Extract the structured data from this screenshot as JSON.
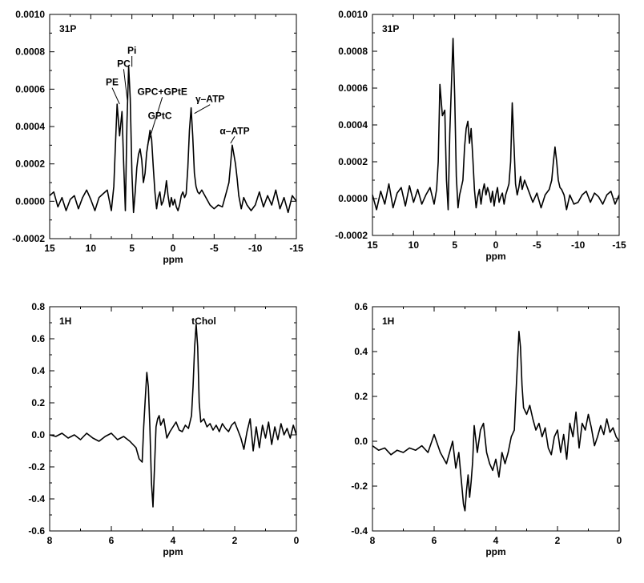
{
  "chart_data": [
    {
      "id": "p31_left",
      "type": "line",
      "panel_label": "31P",
      "xlabel": "ppm",
      "xlim": [
        15,
        -15
      ],
      "ylim": [
        -0.0002,
        0.001
      ],
      "x_ticks": [
        15,
        10,
        5,
        0,
        -5,
        -10,
        -15
      ],
      "x_tick_labels": [
        "15",
        "10",
        "5",
        "0",
        "-5",
        "-10",
        "-15"
      ],
      "y_ticks": [
        -0.0002,
        0,
        0.0002,
        0.0004,
        0.0006,
        0.0008,
        0.001
      ],
      "y_tick_labels": [
        "-0.0002",
        "0.0000",
        "0.0002",
        "0.0004",
        "0.0006",
        "0.0008",
        "0.0010"
      ],
      "grid": false,
      "annotations": [
        {
          "text": "PE",
          "x": 7.4,
          "y": 0.00062,
          "px": 6.5,
          "py": 0.00052
        },
        {
          "text": "PC",
          "x": 6.0,
          "y": 0.00072,
          "px": 5.5,
          "py": 0.00052
        },
        {
          "text": "Pi",
          "x": 5.0,
          "y": 0.00079,
          "px": 5.0,
          "py": 0.00072
        },
        {
          "text": "GPC+GPtE",
          "x": 1.3,
          "y": 0.00057,
          "px": 3.1,
          "py": 0.0003
        },
        {
          "text": "GPtC",
          "x": 1.6,
          "y": 0.00044
        },
        {
          "text": "γ–ATP",
          "x": -4.5,
          "y": 0.00053,
          "px": -2.6,
          "py": 0.00047
        },
        {
          "text": "α–ATP",
          "x": -7.5,
          "y": 0.00036,
          "px": -7.0,
          "py": 0.00031
        }
      ],
      "series": [
        {
          "x": [
            15,
            14.5,
            14,
            13.5,
            13,
            12.5,
            12,
            11.5,
            11,
            10.5,
            10,
            9.5,
            9,
            8.5,
            8,
            7.5,
            7.2,
            7,
            6.8,
            6.5,
            6.2,
            6,
            5.8,
            5.6,
            5.4,
            5.2,
            5,
            4.8,
            4.6,
            4.4,
            4.2,
            4,
            3.8,
            3.6,
            3.4,
            3.2,
            3,
            2.8,
            2.6,
            2.4,
            2.2,
            2,
            1.8,
            1.6,
            1.4,
            1.2,
            1,
            0.8,
            0.6,
            0.4,
            0.2,
            0,
            -0.2,
            -0.4,
            -0.6,
            -0.8,
            -1,
            -1.2,
            -1.4,
            -1.6,
            -1.8,
            -2,
            -2.2,
            -2.4,
            -2.6,
            -2.8,
            -3,
            -3.2,
            -3.5,
            -4,
            -4.5,
            -5,
            -5.5,
            -6,
            -6.5,
            -6.8,
            -7,
            -7.2,
            -7.4,
            -7.6,
            -7.8,
            -8,
            -8.3,
            -8.6,
            -9,
            -9.5,
            -10,
            -10.5,
            -11,
            -11.5,
            -12,
            -12.5,
            -13,
            -13.5,
            -14,
            -14.5,
            -15
          ],
          "y": [
            3e-05,
            5e-05,
            -3e-05,
            2e-05,
            -5e-05,
            1e-05,
            3e-05,
            -4e-05,
            2e-05,
            6e-05,
            1e-05,
            -5e-05,
            2e-05,
            4e-05,
            6e-05,
            -5e-05,
            8e-05,
            0.0003,
            0.00052,
            0.00035,
            0.00048,
            0.0002,
            -5e-05,
            0.00042,
            0.00072,
            0.00055,
            0.00015,
            -6e-05,
            5e-05,
            0.00018,
            0.00025,
            0.00028,
            0.00022,
            0.0001,
            0.00015,
            0.00026,
            0.00032,
            0.00038,
            0.00033,
            0.00018,
            5e-05,
            -4e-05,
            2e-05,
            5e-05,
            -2e-05,
            0,
            4e-05,
            0.00011,
            3e-05,
            -3e-05,
            2e-05,
            -2e-05,
            1e-05,
            -3e-05,
            -5e-05,
            -2e-05,
            3e-05,
            5e-05,
            2e-05,
            4e-05,
            0.00018,
            0.00038,
            0.0005,
            0.00035,
            0.00015,
            8e-05,
            5e-05,
            4e-05,
            6e-05,
            2e-05,
            -2e-05,
            -4e-05,
            -2e-05,
            -3e-05,
            5e-05,
            0.0001,
            0.0002,
            0.0003,
            0.00025,
            0.0002,
            0.00012,
            3e-05,
            -4e-05,
            2e-05,
            -2e-05,
            -5e-05,
            -2e-05,
            5e-05,
            -3e-05,
            3e-05,
            -2e-05,
            6e-05,
            -4e-05,
            2e-05,
            -6e-05,
            3e-05,
            0
          ]
        }
      ]
    },
    {
      "id": "p31_right",
      "type": "line",
      "panel_label": "31P",
      "xlabel": "ppm",
      "xlim": [
        15,
        -15
      ],
      "ylim": [
        -0.0002,
        0.001
      ],
      "x_ticks": [
        15,
        10,
        5,
        0,
        -5,
        -10,
        -15
      ],
      "x_tick_labels": [
        "15",
        "10",
        "5",
        "0",
        "-5",
        "-10",
        "-15"
      ],
      "y_ticks": [
        -0.0002,
        0,
        0.0002,
        0.0004,
        0.0006,
        0.0008,
        0.001
      ],
      "y_tick_labels": [
        "-0.0002",
        "0.0000",
        "0.0002",
        "0.0004",
        "0.0006",
        "0.0008",
        "0.0010"
      ],
      "grid": false,
      "annotations": [],
      "series": [
        {
          "x": [
            15,
            14.5,
            14,
            13.5,
            13,
            12.5,
            12,
            11.5,
            11,
            10.5,
            10,
            9.5,
            9,
            8.5,
            8,
            7.5,
            7.2,
            7,
            6.8,
            6.5,
            6.2,
            6,
            5.8,
            5.6,
            5.4,
            5.2,
            5,
            4.8,
            4.6,
            4.4,
            4.2,
            4,
            3.8,
            3.6,
            3.4,
            3.2,
            3,
            2.8,
            2.6,
            2.4,
            2.2,
            2,
            1.8,
            1.6,
            1.4,
            1.2,
            1,
            0.8,
            0.6,
            0.4,
            0.2,
            0,
            -0.2,
            -0.4,
            -0.6,
            -0.8,
            -1,
            -1.2,
            -1.4,
            -1.6,
            -1.8,
            -2,
            -2.2,
            -2.4,
            -2.6,
            -2.8,
            -3,
            -3.2,
            -3.5,
            -4,
            -4.5,
            -5,
            -5.5,
            -6,
            -6.5,
            -6.8,
            -7,
            -7.2,
            -7.4,
            -7.6,
            -7.8,
            -8,
            -8.3,
            -8.6,
            -9,
            -9.5,
            -10,
            -10.5,
            -11,
            -11.5,
            -12,
            -12.5,
            -13,
            -13.5,
            -14,
            -14.5,
            -15
          ],
          "y": [
            2e-05,
            -6e-05,
            4e-05,
            -3e-05,
            8e-05,
            -5e-05,
            3e-05,
            6e-05,
            -4e-05,
            7e-05,
            -2e-05,
            5e-05,
            -3e-05,
            2e-05,
            6e-05,
            -3e-05,
            5e-05,
            0.0002,
            0.00062,
            0.00045,
            0.00048,
            0.0001,
            -6e-05,
            0.00035,
            0.00062,
            0.00087,
            0.00055,
            0.00012,
            -5e-05,
            2e-05,
            6e-05,
            0.0001,
            0.00028,
            0.00038,
            0.00042,
            0.0003,
            0.00038,
            0.00022,
            5e-05,
            -5e-05,
            1e-05,
            5e-05,
            -3e-05,
            4e-05,
            8e-05,
            2e-05,
            6e-05,
            3e-05,
            -2e-05,
            4e-05,
            -4e-05,
            2e-05,
            6e-05,
            -2e-05,
            1e-05,
            3e-05,
            -3e-05,
            2e-05,
            5e-05,
            8e-05,
            0.0002,
            0.00052,
            0.0003,
            8e-05,
            2e-05,
            6e-05,
            0.00012,
            5e-05,
            0.0001,
            4e-05,
            -2e-05,
            3e-05,
            -5e-05,
            2e-05,
            5e-05,
            0.0001,
            0.0002,
            0.00028,
            0.0002,
            0.0001,
            6e-05,
            5e-05,
            2e-05,
            -6e-05,
            2e-05,
            -3e-05,
            -2e-05,
            2e-05,
            4e-05,
            -2e-05,
            3e-05,
            1e-05,
            -3e-05,
            2e-05,
            4e-05,
            -3e-05,
            2e-05
          ]
        }
      ]
    },
    {
      "id": "h1_left",
      "type": "line",
      "panel_label": "1H",
      "xlabel": "ppm",
      "xlim": [
        8,
        0
      ],
      "ylim": [
        -0.6,
        0.8
      ],
      "x_ticks": [
        8,
        6,
        4,
        2,
        0
      ],
      "x_tick_labels": [
        "8",
        "6",
        "4",
        "2",
        "0"
      ],
      "y_ticks": [
        -0.6,
        -0.4,
        -0.2,
        0,
        0.2,
        0.4,
        0.6,
        0.8
      ],
      "y_tick_labels": [
        "-0.6",
        "-0.4",
        "-0.2",
        "0.0",
        "0.2",
        "0.4",
        "0.6",
        "0.8"
      ],
      "grid": false,
      "annotations": [
        {
          "text": "tChol",
          "x": 3.0,
          "y": 0.69
        }
      ],
      "series": [
        {
          "x": [
            8,
            7.8,
            7.6,
            7.4,
            7.2,
            7,
            6.8,
            6.6,
            6.4,
            6.2,
            6,
            5.8,
            5.6,
            5.4,
            5.2,
            5.1,
            5,
            4.95,
            4.9,
            4.85,
            4.8,
            4.75,
            4.7,
            4.65,
            4.6,
            4.55,
            4.5,
            4.45,
            4.4,
            4.3,
            4.2,
            4.1,
            4,
            3.9,
            3.8,
            3.7,
            3.6,
            3.5,
            3.4,
            3.35,
            3.3,
            3.25,
            3.2,
            3.15,
            3.1,
            3,
            2.9,
            2.8,
            2.7,
            2.6,
            2.5,
            2.4,
            2.3,
            2.2,
            2.1,
            2,
            1.9,
            1.8,
            1.7,
            1.6,
            1.5,
            1.4,
            1.3,
            1.2,
            1.1,
            1,
            0.9,
            0.8,
            0.7,
            0.6,
            0.5,
            0.4,
            0.3,
            0.2,
            0.1,
            0
          ],
          "y": [
            0,
            -0.01,
            0.01,
            -0.02,
            0,
            -0.03,
            0.01,
            -0.02,
            -0.04,
            -0.01,
            0.01,
            -0.03,
            -0.01,
            -0.04,
            -0.08,
            -0.15,
            -0.17,
            0.05,
            0.22,
            0.39,
            0.3,
            0.05,
            -0.3,
            -0.45,
            -0.2,
            0.05,
            0.1,
            0.12,
            0.06,
            0.1,
            -0.02,
            0.02,
            0.05,
            0.08,
            0.03,
            0.02,
            0.06,
            0.04,
            0.12,
            0.3,
            0.55,
            0.69,
            0.55,
            0.2,
            0.08,
            0.1,
            0.05,
            0.07,
            0.03,
            0.06,
            0.02,
            0.07,
            0.04,
            0.02,
            0.06,
            0.08,
            0.03,
            -0.02,
            -0.09,
            0.02,
            0.1,
            -0.1,
            0.05,
            -0.08,
            0.06,
            -0.02,
            0.08,
            -0.06,
            0.05,
            -0.03,
            0.07,
            0,
            0.04,
            -0.02,
            0.06,
            0
          ]
        }
      ]
    },
    {
      "id": "h1_right",
      "type": "line",
      "panel_label": "1H",
      "xlabel": "ppm",
      "xlim": [
        8,
        0
      ],
      "ylim": [
        -0.4,
        0.6
      ],
      "x_ticks": [
        8,
        6,
        4,
        2,
        0
      ],
      "x_tick_labels": [
        "8",
        "6",
        "4",
        "2",
        "0"
      ],
      "y_ticks": [
        -0.4,
        -0.2,
        0,
        0.2,
        0.4,
        0.6
      ],
      "y_tick_labels": [
        "-0.4",
        "-0.2",
        "0.0",
        "0.2",
        "0.4",
        "0.6"
      ],
      "grid": false,
      "annotations": [],
      "series": [
        {
          "x": [
            8,
            7.8,
            7.6,
            7.4,
            7.2,
            7,
            6.8,
            6.6,
            6.4,
            6.2,
            6,
            5.8,
            5.6,
            5.4,
            5.3,
            5.2,
            5.1,
            5.05,
            5,
            4.95,
            4.9,
            4.85,
            4.8,
            4.75,
            4.7,
            4.6,
            4.5,
            4.4,
            4.3,
            4.2,
            4.1,
            4,
            3.9,
            3.8,
            3.7,
            3.6,
            3.5,
            3.4,
            3.35,
            3.3,
            3.25,
            3.2,
            3.15,
            3.1,
            3,
            2.9,
            2.8,
            2.7,
            2.6,
            2.5,
            2.4,
            2.3,
            2.2,
            2.1,
            2,
            1.9,
            1.8,
            1.7,
            1.6,
            1.5,
            1.4,
            1.3,
            1.2,
            1.1,
            1,
            0.9,
            0.8,
            0.7,
            0.6,
            0.5,
            0.4,
            0.3,
            0.2,
            0.1,
            0
          ],
          "y": [
            -0.02,
            -0.04,
            -0.03,
            -0.06,
            -0.04,
            -0.05,
            -0.03,
            -0.04,
            -0.02,
            -0.05,
            0.03,
            -0.05,
            -0.1,
            0,
            -0.12,
            -0.05,
            -0.2,
            -0.28,
            -0.31,
            -0.22,
            -0.15,
            -0.25,
            -0.18,
            -0.09,
            0.07,
            -0.05,
            0.05,
            0.08,
            -0.05,
            -0.1,
            -0.13,
            -0.08,
            -0.16,
            -0.05,
            -0.1,
            -0.05,
            0.02,
            0.05,
            0.2,
            0.35,
            0.49,
            0.42,
            0.25,
            0.15,
            0.12,
            0.16,
            0.1,
            0.05,
            0.08,
            0.02,
            0.06,
            -0.03,
            -0.06,
            0.02,
            0.05,
            -0.05,
            0.03,
            -0.08,
            0.08,
            0.02,
            0.13,
            -0.03,
            0.08,
            0.05,
            0.12,
            0.06,
            -0.02,
            0.02,
            0.07,
            0.03,
            0.1,
            0.04,
            0.06,
            0.02,
            0
          ]
        }
      ]
    }
  ]
}
